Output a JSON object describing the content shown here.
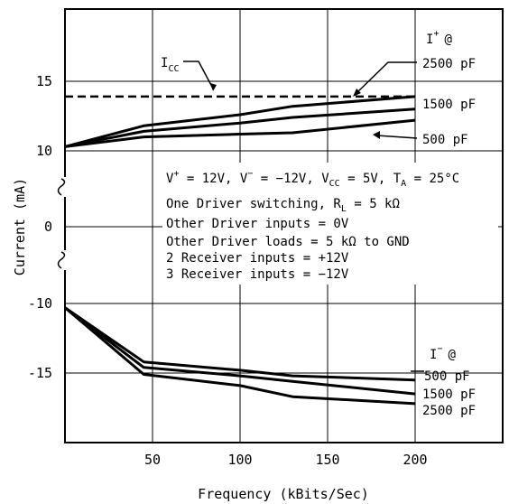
{
  "chart_data": {
    "type": "line",
    "title": "",
    "xlabel": "Frequency (kBits/Sec)",
    "ylabel": "Current (mA)",
    "xlim": [
      0,
      250
    ],
    "x_ticks": [
      50,
      100,
      150,
      200
    ],
    "x_tick_labels": [
      "50",
      "100",
      "150",
      "200"
    ],
    "y_ticks": [
      15,
      10,
      0,
      -10,
      -15
    ],
    "y_tick_labels": [
      "15",
      "10",
      "0",
      "-10",
      "-15"
    ],
    "y_axis_break": true,
    "grid": true,
    "legend": "none",
    "series": [
      {
        "name": "I_CC",
        "style": "dashed",
        "x": [
          0,
          200
        ],
        "y": [
          13.9,
          13.9
        ]
      },
      {
        "name": "2500 pF",
        "group": "I+",
        "x": [
          0,
          45,
          100,
          130,
          200
        ],
        "y": [
          10.3,
          11.8,
          12.6,
          13.2,
          13.9
        ]
      },
      {
        "name": "1500 pF",
        "group": "I+",
        "x": [
          0,
          45,
          100,
          130,
          200
        ],
        "y": [
          10.3,
          11.4,
          12.0,
          12.4,
          13.0
        ]
      },
      {
        "name": "500 pF",
        "group": "I+",
        "x": [
          0,
          45,
          100,
          130,
          200
        ],
        "y": [
          10.3,
          11.0,
          11.2,
          11.3,
          12.2
        ]
      },
      {
        "name": "500 pF",
        "group": "I-",
        "x": [
          0,
          45,
          100,
          130,
          200
        ],
        "y": [
          -10.3,
          -14.2,
          -14.8,
          -15.2,
          -15.5
        ]
      },
      {
        "name": "1500 pF",
        "group": "I-",
        "x": [
          0,
          45,
          100,
          130,
          200
        ],
        "y": [
          -10.3,
          -14.6,
          -15.2,
          -15.6,
          -16.5
        ]
      },
      {
        "name": "2500 pF",
        "group": "I-",
        "x": [
          0,
          45,
          100,
          130,
          200
        ],
        "y": [
          -10.3,
          -15.1,
          -15.9,
          -16.7,
          -17.2
        ]
      }
    ],
    "labels": {
      "icc_main": "I",
      "icc_sub": "CC",
      "iplus_main": "I",
      "iplus_sup": "+",
      "iplus_at": "@",
      "iminus_main": "I",
      "iminus_sup": "−",
      "iminus_at": "@",
      "plus_2500": "2500 pF",
      "plus_1500": "1500 pF",
      "plus_500": "500 pF",
      "minus_500": "500 pF",
      "minus_1500": "1500 pF",
      "minus_2500": "2500 pF"
    },
    "annotations": {
      "line1_parts": [
        "V",
        "+",
        " = 12V, V",
        "−",
        " = −12V, V",
        "CC",
        " = 5V, T",
        "A",
        " = 25°C"
      ],
      "line2_parts": [
        "One Driver switching, R",
        "L",
        " = 5 kΩ"
      ],
      "line3": "Other Driver inputs = 0V",
      "line4": "Other Driver loads = 5 kΩ  to GND",
      "line5": "2 Receiver inputs = +12V",
      "line6": "3 Receiver inputs = −12V"
    }
  }
}
